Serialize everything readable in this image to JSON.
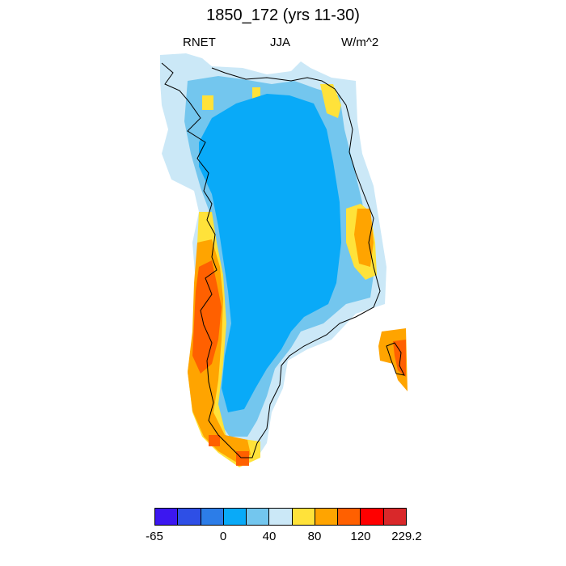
{
  "title": "1850_172 (yrs 11-30)",
  "subtitle_left": "RNET",
  "subtitle_center": "JJA",
  "subtitle_right": "W/m^2",
  "colorbar": {
    "colors": [
      "#3c17f0",
      "#2e4fe6",
      "#2c7de8",
      "#09aaf8",
      "#73c6ee",
      "#cbe8f7",
      "#ffe23a",
      "#ffa400",
      "#ff6000",
      "#ff0000",
      "#d9282a"
    ],
    "tick_labels": [
      "-65",
      "0",
      "40",
      "80",
      "120",
      "229.2"
    ]
  },
  "map_colors": {
    "interior": "#09aaf8",
    "light_blue": "#73c6ee",
    "pale_blue": "#cbe8f7",
    "yellow": "#ffe23a",
    "orange": "#ffa400",
    "dark_orange": "#ff6000"
  }
}
